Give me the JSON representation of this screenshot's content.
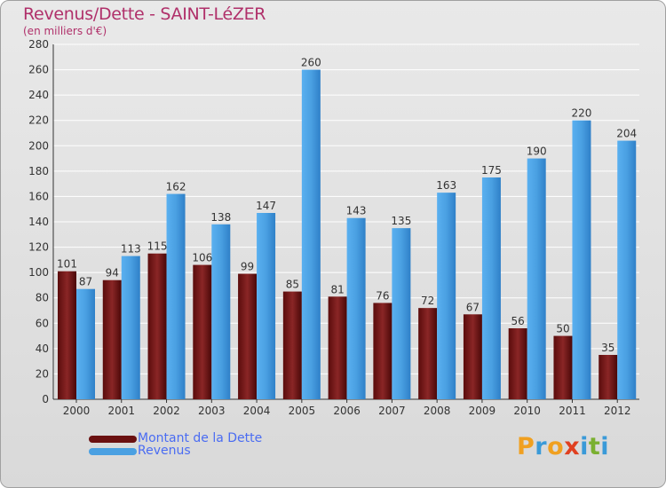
{
  "title": "Revenus/Dette - SAINT-LéZER",
  "subtitle": "(en milliers d'€)",
  "brand": {
    "letters": [
      "P",
      "r",
      "o",
      "x",
      "i",
      "t",
      "i"
    ],
    "colors": [
      "#f0a020",
      "#3a9ad8",
      "#f0a020",
      "#e04020",
      "#3a9ad8",
      "#7ab030",
      "#3a9ad8"
    ]
  },
  "chart_data": {
    "type": "bar",
    "categories": [
      "2000",
      "2001",
      "2002",
      "2003",
      "2004",
      "2005",
      "2006",
      "2007",
      "2008",
      "2009",
      "2010",
      "2011",
      "2012"
    ],
    "series": [
      {
        "name": "Montant de la Dette",
        "color": "#7a1a1a",
        "values": [
          101,
          94,
          115,
          106,
          99,
          85,
          81,
          76,
          72,
          67,
          56,
          50,
          35
        ]
      },
      {
        "name": "Revenus",
        "color": "#4aa0e2",
        "values": [
          87,
          113,
          162,
          138,
          147,
          260,
          143,
          135,
          163,
          175,
          190,
          220,
          204
        ]
      }
    ],
    "yticks": [
      0,
      20,
      40,
      60,
      80,
      100,
      120,
      140,
      160,
      180,
      200,
      220,
      240,
      260,
      280
    ],
    "ylim": [
      0,
      280
    ],
    "grid": true,
    "legend_position": "bottom-left"
  }
}
